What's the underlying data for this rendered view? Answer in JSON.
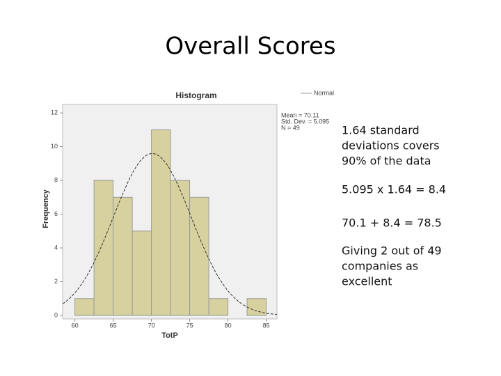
{
  "title": "Overall Scores",
  "notes": [
    [
      "1.64 standard",
      "deviations covers",
      "90% of the data"
    ],
    [
      "5.095 x 1.64 = 8.4"
    ],
    [
      "70.1 + 8.4 = 78.5"
    ],
    [
      "Giving 2 out of 49",
      "companies as",
      "excellent"
    ]
  ],
  "chart_data": {
    "type": "histogram",
    "title": "Histogram",
    "x_label": "TotP",
    "y_label": "Frequency",
    "bins": [
      60,
      62.5,
      65,
      67.5,
      70,
      72.5,
      75,
      77.5,
      80,
      82.5,
      85
    ],
    "values": [
      1,
      8,
      7,
      5,
      11,
      8,
      7,
      1,
      0,
      1
    ],
    "color": "#d6d19e",
    "xlim": [
      58.4,
      86.4
    ],
    "xticks": [
      60,
      65,
      70,
      75,
      80,
      85
    ],
    "ylim": [
      0,
      12.5
    ],
    "yticks": [
      0,
      2,
      4,
      6,
      8,
      10,
      12
    ],
    "legend": "Normal",
    "stats": [
      {
        "label": "Mean = 70.11",
        "value": 70.11
      },
      {
        "label": "Std. Dev. = 5.095",
        "value": 5.095
      },
      {
        "label": "N = 49",
        "value": 49
      }
    ]
  }
}
